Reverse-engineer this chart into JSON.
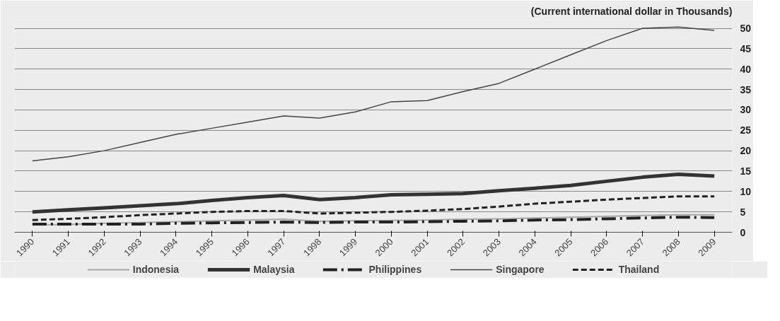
{
  "chart_data": {
    "type": "line",
    "ylabel": "(Current international dollar in Thousands)",
    "categories": [
      "1990",
      "1991",
      "1992",
      "1993",
      "1994",
      "1995",
      "1996",
      "1997",
      "1998",
      "1999",
      "2000",
      "2001",
      "2002",
      "2003",
      "2004",
      "2005",
      "2006",
      "2007",
      "2008",
      "2009"
    ],
    "series": [
      {
        "name": "Indonesia",
        "color": "#a8a8a8",
        "line_style": "solid",
        "values": [
          1.8,
          1.9,
          2.2,
          2.4,
          2.6,
          2.8,
          3,
          3.2,
          2.7,
          2.8,
          2.9,
          3,
          3.2,
          3.3,
          3.5,
          3.7,
          3.9,
          4.1,
          4.3,
          4.3
        ]
      },
      {
        "name": "Malaysia",
        "color": "#333333",
        "line_style": "solid",
        "values": [
          5,
          5.5,
          6,
          6.5,
          7,
          7.8,
          8.5,
          9,
          8,
          8.5,
          9.2,
          9.3,
          9.5,
          10.2,
          10.8,
          11.5,
          12.5,
          13.5,
          14.2,
          13.8
        ]
      },
      {
        "name": "Philippines",
        "color": "#222222",
        "line_style": "dashdot",
        "values": [
          2,
          2,
          2,
          2,
          2.2,
          2.3,
          2.4,
          2.5,
          2.4,
          2.5,
          2.5,
          2.6,
          2.7,
          2.8,
          3,
          3.1,
          3.3,
          3.5,
          3.7,
          3.6
        ]
      },
      {
        "name": "Singapore",
        "color": "#444444",
        "line_style": "solid",
        "values": [
          17.5,
          18.5,
          20,
          22,
          24,
          25.5,
          27,
          28.5,
          28,
          29.5,
          32,
          32.3,
          34.5,
          36.5,
          40,
          43.5,
          47,
          50,
          50.3,
          49.5
        ]
      },
      {
        "name": "Thailand",
        "color": "#222222",
        "line_style": "dashed",
        "values": [
          3,
          3.3,
          3.7,
          4.2,
          4.6,
          5,
          5.2,
          5.2,
          4.6,
          4.8,
          5,
          5.3,
          5.7,
          6.3,
          7,
          7.5,
          8,
          8.4,
          8.8,
          8.8
        ]
      }
    ],
    "ylim": [
      0,
      52
    ],
    "yticks": [
      0,
      5,
      10,
      15,
      20,
      25,
      30,
      35,
      40,
      45,
      50
    ],
    "grid": "y",
    "legend": "bottom"
  }
}
